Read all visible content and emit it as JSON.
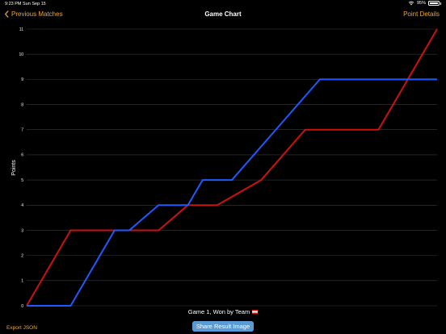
{
  "status_bar": {
    "time": "9:23 PM",
    "date": "Sun Sep 15",
    "battery": "95%",
    "battery_level": 0.95,
    "wifi_icon": "wifi-icon",
    "battery_icon": "battery-icon"
  },
  "nav": {
    "back_label": "Previous Matches",
    "back_icon": "chevron-left-icon",
    "title": "Game Chart",
    "right_label": "Point Details"
  },
  "caption": {
    "text": "Game 1, Won by Team",
    "flag_icon": "flag-icon"
  },
  "actions": {
    "share_label": "Share Result Image",
    "export_label": "Export JSON"
  },
  "colors": {
    "accent": "#F5A623",
    "blue_series": "#1E5BFF",
    "red_series": "#CC1111",
    "button": "#5B9BD5"
  },
  "chart_data": {
    "type": "line",
    "title": "",
    "xlabel": "",
    "ylabel": "Points",
    "ylim": [
      0,
      11
    ],
    "yticks": [
      "0",
      "1",
      "2",
      "3",
      "4",
      "5",
      "6",
      "7",
      "8",
      "9",
      "10",
      "11"
    ],
    "grid": true,
    "series": [
      {
        "color": "#CC1111",
        "x": [
          0,
          3,
          6,
          9,
          11,
          13,
          16,
          19,
          21,
          24,
          28
        ],
        "y": [
          0,
          3,
          3,
          3,
          4,
          4,
          5,
          7,
          7,
          7,
          11
        ]
      },
      {
        "color": "#1E5BFF",
        "x": [
          0,
          3,
          6,
          7,
          9,
          11,
          12,
          14,
          17,
          20,
          24,
          28
        ],
        "y": [
          0,
          0,
          3,
          3,
          4,
          4,
          5,
          5,
          7,
          9,
          9,
          9
        ]
      }
    ]
  }
}
